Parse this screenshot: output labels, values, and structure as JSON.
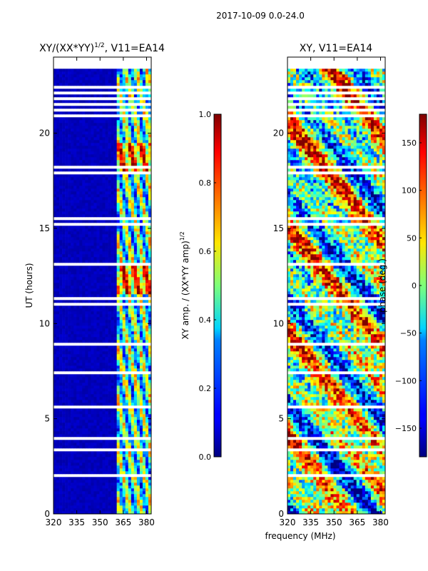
{
  "suptitle": "2017-10-09 0.0-24.0",
  "chart_data": [
    {
      "type": "heatmap",
      "title_main": "XY/(XX*YY)",
      "title_exp": "1/2",
      "title_tail": ", V11=EA14",
      "ylabel": "UT (hours)",
      "xlim": [
        320,
        383
      ],
      "ylim": [
        0,
        24
      ],
      "xticks": [
        320,
        335,
        350,
        365,
        380
      ],
      "yticks": [
        0,
        5,
        10,
        15,
        20
      ],
      "colorbar": {
        "label_main": "XY amp. / (XX*YY amp)",
        "label_exp": "1/2",
        "range": [
          0.0,
          1.0
        ],
        "ticks": [
          "0.0",
          "0.2",
          "0.4",
          "0.6",
          "0.8",
          "1.0"
        ]
      }
    },
    {
      "type": "heatmap",
      "title": "XY, V11=EA14",
      "xlabel": "frequency (MHz)",
      "xlim": [
        320,
        383
      ],
      "ylim": [
        0,
        24
      ],
      "xticks": [
        320,
        335,
        350,
        365,
        380
      ],
      "yticks": [
        0,
        5,
        10,
        15,
        20
      ],
      "colorbar": {
        "label": "phase (deg.)",
        "range": [
          -180,
          180
        ],
        "ticks": [
          "−150",
          "−100",
          "−50",
          "0",
          "50",
          "100",
          "150"
        ]
      }
    }
  ],
  "colors": {
    "background": "#ffffff",
    "axis": "#000000",
    "jet_low": "#00007f",
    "jet_high": "#7f0000",
    "gap": "#ffffff"
  }
}
